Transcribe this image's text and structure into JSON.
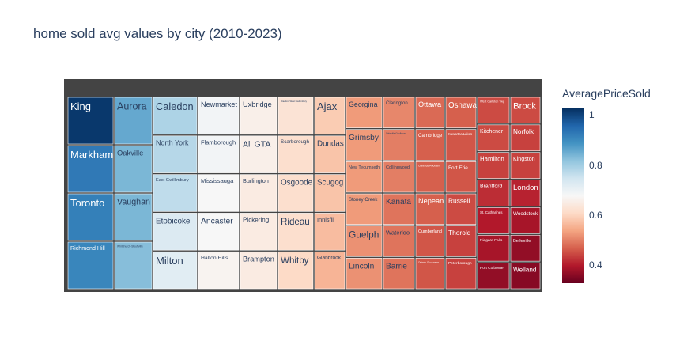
{
  "chart_data": {
    "type": "treemap",
    "title": "home sold avg values by city (2010-2023)",
    "colorbar": {
      "title": "AveragePriceSold",
      "ticks": [
        "1",
        "0.8",
        "0.6",
        "0.4"
      ],
      "tick_values": [
        1.0,
        0.8,
        0.6,
        0.4
      ],
      "range": [
        0.33,
        1.03
      ]
    },
    "columns": [
      [
        "King",
        "Markham",
        "Toronto",
        "Richmond Hill"
      ],
      [
        "Aurora",
        "Oakville",
        "Vaughan",
        "Whitchurch-Stouffville"
      ],
      [
        "Caledon",
        "North York",
        "East Gwillimbury",
        "Etobicoke",
        "Milton"
      ],
      [
        "Newmarket",
        "Flamborough",
        "Mississauga",
        "Ancaster",
        "Halton Hills"
      ],
      [
        "Uxbridge",
        "All GTA",
        "Burlington",
        "Pickering",
        "Brampton"
      ],
      [
        "Bradford West Gwillimbury",
        "Scarborough",
        "Osgoode",
        "Rideau",
        "Whitby"
      ],
      [
        "Ajax",
        "Dundas",
        "Scugog",
        "Innisfil",
        "Glanbrook"
      ],
      [
        "Georgina",
        "Grimsby",
        "New Tecumseth",
        "Stoney Creek",
        "Guelph",
        "Lincoln"
      ],
      [
        "Clarington",
        "Stittsville-Goulbourn",
        "Collingwood",
        "Kanata",
        "Waterloo",
        "Barrie"
      ],
      [
        "Ottawa",
        "Cambridge",
        "Clarence-Rockland",
        "Nepean",
        "Cumberland",
        "Ontario Gloucester"
      ],
      [
        "Oshawa",
        "Kawartha Lakes",
        "Fort Erie",
        "Russell",
        "Thorold",
        "Peterborough"
      ],
      [
        "West Carleton Twp",
        "Kitchener",
        "Hamilton",
        "Brantford",
        "St. Catharines",
        "Niagara Falls",
        "Port Colborne"
      ],
      [
        "Brock",
        "Norfolk",
        "Kingston",
        "London",
        "Woodstock",
        "Belleville",
        "Welland"
      ]
    ],
    "values": {
      "King": 1.02,
      "Markham": 0.93,
      "Toronto": 0.92,
      "Richmond Hill": 0.91,
      "Aurora": 0.86,
      "Oakville": 0.84,
      "Vaughan": 0.84,
      "Whitchurch-Stouffville": 0.83,
      "Caledon": 0.79,
      "North York": 0.78,
      "East Gwillimbury": 0.77,
      "Etobicoke": 0.73,
      "Milton": 0.72,
      "Newmarket": 0.69,
      "Flamborough": 0.69,
      "Mississauga": 0.68,
      "Ancaster": 0.68,
      "Halton Hills": 0.67,
      "Uxbridge": 0.66,
      "All GTA": 0.66,
      "Burlington": 0.65,
      "Pickering": 0.65,
      "Brampton": 0.65,
      "Bradford West Gwillimbury": 0.63,
      "Scarborough": 0.62,
      "Osgoode": 0.62,
      "Rideau": 0.62,
      "Whitby": 0.61,
      "Ajax": 0.59,
      "Dundas": 0.58,
      "Scugog": 0.58,
      "Innisfil": 0.57,
      "Glanbrook": 0.56,
      "Georgina": 0.53,
      "Grimsby": 0.53,
      "New Tecumseth": 0.53,
      "Stoney Creek": 0.53,
      "Guelph": 0.52,
      "Lincoln": 0.52,
      "Clarington": 0.51,
      "Stittsville-Goulbourn": 0.5,
      "Collingwood": 0.5,
      "Kanata": 0.49,
      "Waterloo": 0.49,
      "Barrie": 0.49,
      "Ottawa": 0.48,
      "Cambridge": 0.47,
      "Clarence-Rockland": 0.47,
      "Nepean": 0.47,
      "Cumberland": 0.46,
      "Ontario Gloucester": 0.46,
      "Oshawa": 0.47,
      "Kawartha Lakes": 0.46,
      "Fort Erie": 0.46,
      "Russell": 0.45,
      "Thorold": 0.44,
      "Peterborough": 0.44,
      "West Carleton Twp": 0.45,
      "Kitchener": 0.45,
      "Hamilton": 0.44,
      "Brantford": 0.42,
      "St. Catharines": 0.4,
      "Niagara Falls": 0.39,
      "Port Colborne": 0.37,
      "Brock": 0.45,
      "Norfolk": 0.44,
      "Kingston": 0.44,
      "London": 0.41,
      "Woodstock": 0.39,
      "Belleville": 0.37,
      "Welland": 0.36
    },
    "colorscale": [
      "#67001f",
      "#b2182b",
      "#d6604d",
      "#f4a582",
      "#fddbc7",
      "#f7f7f7",
      "#d1e5f0",
      "#92c5de",
      "#4393c3",
      "#2166ac",
      "#053061"
    ]
  }
}
